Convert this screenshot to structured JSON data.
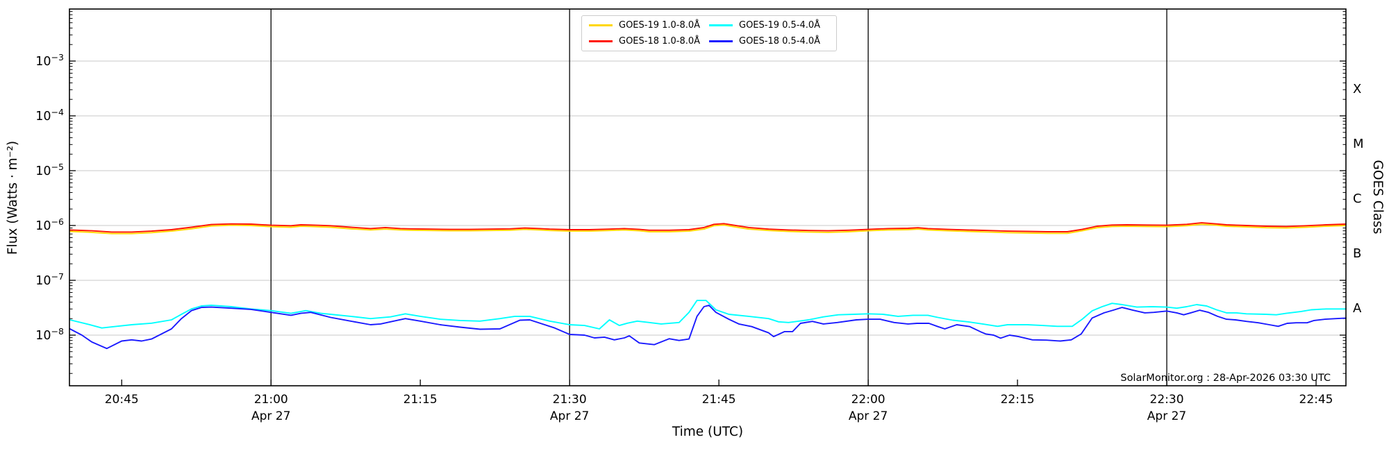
{
  "figure": {
    "watermark": "SolarMonitor.org : 28-Apr-2026 03:30 UTC",
    "xlabel": "Time (UTC)",
    "ylabel": "Flux (Watts · m⁻²)",
    "ylabel_right": "GOES Class",
    "background": "#ffffff"
  },
  "chart_data": {
    "type": "line",
    "title": "",
    "x_unit": "minutes after 20:00 UTC on Apr 27",
    "y_unit": "Watts m^-2, log10 scale",
    "xlim": [
      39.75,
      168
    ],
    "ylim_log10": [
      -8.924,
      -2.051
    ],
    "grid": "horizontal-decades",
    "grid_decades": [
      -3,
      -4,
      -5,
      -6,
      -7,
      -8
    ],
    "legend_position": "upper center",
    "x_ticks": [
      {
        "t": 45,
        "label": "20:45"
      },
      {
        "t": 60,
        "label": "21:00",
        "date": "Apr 27",
        "vline": true
      },
      {
        "t": 75,
        "label": "21:15"
      },
      {
        "t": 90,
        "label": "21:30",
        "date": "Apr 27",
        "vline": true
      },
      {
        "t": 105,
        "label": "21:45"
      },
      {
        "t": 120,
        "label": "22:00",
        "date": "Apr 27",
        "vline": true
      },
      {
        "t": 135,
        "label": "22:15"
      },
      {
        "t": 150,
        "label": "22:30",
        "date": "Apr 27",
        "vline": true
      },
      {
        "t": 165,
        "label": "22:45"
      }
    ],
    "goes_classes": [
      {
        "label": "X",
        "log10_flux": -3.5
      },
      {
        "label": "M",
        "log10_flux": -4.5
      },
      {
        "label": "C",
        "log10_flux": -5.5
      },
      {
        "label": "B",
        "log10_flux": -6.5
      },
      {
        "label": "A",
        "log10_flux": -7.5
      }
    ],
    "series": [
      {
        "name": "GOES-19 1.0-8.0Å",
        "color": "#ffd700",
        "x": [
          39.8,
          42,
          44,
          46,
          48,
          50,
          52,
          54,
          56,
          58,
          60,
          62,
          63,
          64,
          66,
          68,
          70,
          71.5,
          73,
          74,
          76,
          78,
          80,
          82,
          84,
          85.5,
          87,
          88,
          90,
          92,
          94,
          95.5,
          97,
          98,
          100,
          102,
          103.5,
          104.5,
          105.5,
          107,
          108,
          110,
          112,
          114,
          116,
          118,
          120,
          122,
          124,
          125,
          126,
          128,
          130,
          132,
          134,
          136,
          138,
          140,
          141.5,
          143,
          144.5,
          146,
          148,
          150,
          152,
          153.5,
          155,
          156,
          158,
          160,
          162,
          164,
          166,
          168
        ],
        "y": [
          7.8e-07,
          7.5e-07,
          7.1e-07,
          7.1e-07,
          7.4e-07,
          7.9e-07,
          8.7e-07,
          9.8e-07,
          1.01e-06,
          1e-06,
          9.5e-07,
          9.3e-07,
          9.7e-07,
          9.6e-07,
          9.3e-07,
          8.7e-07,
          8.3e-07,
          8.6e-07,
          8.3e-07,
          8.2e-07,
          8.1e-07,
          8e-07,
          8e-07,
          8.1e-07,
          8.2e-07,
          8.5e-07,
          8.3e-07,
          8.1e-07,
          7.9e-07,
          7.9e-07,
          8.1e-07,
          8.3e-07,
          8e-07,
          7.7e-07,
          7.7e-07,
          7.9e-07,
          8.6e-07,
          9.9e-07,
          1.02e-06,
          9.2e-07,
          8.6e-07,
          8.1e-07,
          7.8e-07,
          7.6e-07,
          7.5e-07,
          7.7e-07,
          8e-07,
          8.3e-07,
          8.4e-07,
          8.6e-07,
          8.3e-07,
          8e-07,
          7.8e-07,
          7.6e-07,
          7.4e-07,
          7.3e-07,
          7.2e-07,
          7.2e-07,
          8e-07,
          9.1e-07,
          9.6e-07,
          9.7e-07,
          9.6e-07,
          9.5e-07,
          9.9e-07,
          1.05e-06,
          1.01e-06,
          9.7e-07,
          9.4e-07,
          9.1e-07,
          9e-07,
          9.3e-07,
          9.7e-07,
          1e-06
        ]
      },
      {
        "name": "GOES-18 1.0-8.0Å",
        "color": "#ff1200",
        "x": [
          39.8,
          42,
          44,
          46,
          48,
          50,
          52,
          54,
          56,
          58,
          60,
          62,
          63,
          64,
          66,
          68,
          70,
          71.5,
          73,
          74,
          76,
          78,
          80,
          82,
          84,
          85.5,
          87,
          88,
          90,
          92,
          94,
          95.5,
          97,
          98,
          100,
          102,
          103.5,
          104.5,
          105.5,
          107,
          108,
          110,
          112,
          114,
          116,
          118,
          120,
          122,
          124,
          125,
          126,
          128,
          130,
          132,
          134,
          136,
          138,
          140,
          141.5,
          143,
          144.5,
          146,
          148,
          150,
          152,
          153.5,
          155,
          156,
          158,
          160,
          162,
          164,
          166,
          168
        ],
        "y": [
          8.3e-07,
          8e-07,
          7.6e-07,
          7.6e-07,
          7.9e-07,
          8.4e-07,
          9.3e-07,
          1.04e-06,
          1.07e-06,
          1.06e-06,
          1.01e-06,
          9.9e-07,
          1.03e-06,
          1.02e-06,
          9.9e-07,
          9.3e-07,
          8.8e-07,
          9.2e-07,
          8.8e-07,
          8.7e-07,
          8.6e-07,
          8.5e-07,
          8.5e-07,
          8.6e-07,
          8.7e-07,
          9e-07,
          8.8e-07,
          8.6e-07,
          8.4e-07,
          8.4e-07,
          8.6e-07,
          8.8e-07,
          8.5e-07,
          8.2e-07,
          8.2e-07,
          8.4e-07,
          9.2e-07,
          1.05e-06,
          1.08e-06,
          9.8e-07,
          9.2e-07,
          8.6e-07,
          8.3e-07,
          8.1e-07,
          8e-07,
          8.2e-07,
          8.5e-07,
          8.8e-07,
          8.9e-07,
          9.1e-07,
          8.8e-07,
          8.5e-07,
          8.3e-07,
          8.1e-07,
          7.9e-07,
          7.8e-07,
          7.7e-07,
          7.7e-07,
          8.5e-07,
          9.7e-07,
          1.02e-06,
          1.03e-06,
          1.02e-06,
          1.01e-06,
          1.05e-06,
          1.12e-06,
          1.07e-06,
          1.03e-06,
          1e-06,
          9.7e-07,
          9.6e-07,
          9.9e-07,
          1.03e-06,
          1.06e-06
        ]
      },
      {
        "name": "GOES-19 0.5-4.0Å",
        "color": "#00ffff",
        "x": [
          39.8,
          41.5,
          43,
          44.5,
          46,
          48,
          50,
          51,
          52,
          53,
          54,
          56,
          58,
          60,
          62,
          63.5,
          65,
          66,
          68,
          70,
          72,
          73.5,
          75,
          77,
          79,
          81,
          83,
          84.5,
          86,
          88,
          90,
          91.5,
          93,
          94,
          95,
          95.8,
          96.8,
          98,
          99.2,
          101,
          102,
          102.8,
          103.7,
          104.7,
          106,
          108,
          110,
          111,
          112,
          114,
          115.5,
          117,
          118.5,
          120,
          121.5,
          123,
          124.5,
          126,
          127,
          128.5,
          130,
          131.5,
          133,
          134,
          136,
          137.5,
          139,
          140.5,
          141.5,
          142.5,
          143.5,
          144.5,
          145.5,
          147,
          148.5,
          150,
          151,
          152,
          153,
          154,
          155,
          156,
          157,
          158,
          160,
          161,
          162,
          163.5,
          164.5,
          166,
          168
        ],
        "y": [
          1.9e-08,
          1.6e-08,
          1.35e-08,
          1.45e-08,
          1.55e-08,
          1.65e-08,
          1.9e-08,
          2.4e-08,
          3e-08,
          3.4e-08,
          3.5e-08,
          3.3e-08,
          3e-08,
          2.8e-08,
          2.5e-08,
          2.8e-08,
          2.5e-08,
          2.4e-08,
          2.2e-08,
          2e-08,
          2.15e-08,
          2.45e-08,
          2.2e-08,
          1.95e-08,
          1.85e-08,
          1.8e-08,
          2e-08,
          2.2e-08,
          2.2e-08,
          1.8e-08,
          1.55e-08,
          1.5e-08,
          1.3e-08,
          1.9e-08,
          1.5e-08,
          1.65e-08,
          1.8e-08,
          1.7e-08,
          1.6e-08,
          1.7e-08,
          2.6e-08,
          4.3e-08,
          4.3e-08,
          2.9e-08,
          2.4e-08,
          2.2e-08,
          2e-08,
          1.75e-08,
          1.7e-08,
          1.9e-08,
          2.15e-08,
          2.35e-08,
          2.4e-08,
          2.45e-08,
          2.4e-08,
          2.2e-08,
          2.3e-08,
          2.3e-08,
          2.1e-08,
          1.87e-08,
          1.75e-08,
          1.6e-08,
          1.45e-08,
          1.55e-08,
          1.55e-08,
          1.5e-08,
          1.45e-08,
          1.45e-08,
          1.95e-08,
          2.77e-08,
          3.3e-08,
          3.8e-08,
          3.6e-08,
          3.25e-08,
          3.3e-08,
          3.25e-08,
          3.1e-08,
          3.3e-08,
          3.6e-08,
          3.4e-08,
          2.9e-08,
          2.55e-08,
          2.55e-08,
          2.45e-08,
          2.4e-08,
          2.35e-08,
          2.5e-08,
          2.7e-08,
          2.9e-08,
          3e-08,
          3e-08
        ]
      },
      {
        "name": "GOES-18 0.5-4.0Å",
        "color": "#1a1aff",
        "x": [
          39.8,
          41,
          42,
          43.5,
          45,
          46,
          47,
          48,
          50,
          51,
          52,
          53,
          54,
          56,
          58,
          60,
          62,
          63,
          64,
          66,
          68,
          70,
          71,
          72,
          73.5,
          75,
          77,
          79,
          81,
          83,
          85,
          86,
          88.5,
          90,
          91.5,
          92.5,
          93.5,
          94.5,
          95.5,
          96,
          97,
          98.5,
          100,
          101,
          102,
          102.8,
          103.5,
          104,
          104.7,
          106,
          107,
          108.3,
          110,
          110.5,
          111.6,
          112.4,
          113.2,
          114.4,
          115.5,
          116.9,
          118.8,
          120,
          121.2,
          122.6,
          124,
          124.9,
          126.1,
          127,
          127.7,
          128.9,
          130.2,
          131.3,
          131.8,
          132.6,
          133.3,
          134.2,
          135.1,
          136.5,
          137.9,
          139.3,
          140.4,
          141.4,
          142.5,
          143.7,
          144.6,
          145.5,
          146.6,
          147.8,
          148.7,
          150,
          151,
          151.7,
          152.4,
          153.3,
          154.2,
          155.1,
          156,
          156.9,
          158,
          159.2,
          160.3,
          161.2,
          162.1,
          163,
          164.1,
          164.8,
          165.9,
          167,
          168
        ],
        "y": [
          1.3e-08,
          1e-08,
          7.5e-09,
          5.7e-09,
          7.8e-09,
          8.2e-09,
          7.8e-09,
          8.5e-09,
          1.3e-08,
          2e-08,
          2.8e-08,
          3.2e-08,
          3.25e-08,
          3.1e-08,
          2.95e-08,
          2.6e-08,
          2.3e-08,
          2.5e-08,
          2.6e-08,
          2.1e-08,
          1.8e-08,
          1.55e-08,
          1.6e-08,
          1.75e-08,
          2e-08,
          1.8e-08,
          1.55e-08,
          1.4e-08,
          1.28e-08,
          1.3e-08,
          1.87e-08,
          1.9e-08,
          1.35e-08,
          1.03e-08,
          1e-08,
          8.9e-09,
          9.2e-09,
          8.2e-09,
          8.9e-09,
          9.7e-09,
          7.2e-09,
          6.7e-09,
          8.6e-09,
          8e-09,
          8.5e-09,
          2.2e-08,
          3.3e-08,
          3.5e-08,
          2.6e-08,
          1.95e-08,
          1.6e-08,
          1.43e-08,
          1.1e-08,
          9.4e-09,
          1.16e-08,
          1.16e-08,
          1.64e-08,
          1.78e-08,
          1.6e-08,
          1.7e-08,
          1.9e-08,
          1.95e-08,
          1.95e-08,
          1.7e-08,
          1.6e-08,
          1.64e-08,
          1.64e-08,
          1.43e-08,
          1.3e-08,
          1.55e-08,
          1.43e-08,
          1.15e-08,
          1.05e-08,
          1e-08,
          8.8e-09,
          1e-08,
          9.4e-09,
          8.2e-09,
          8.1e-09,
          7.8e-09,
          8.2e-09,
          1.05e-08,
          2.05e-08,
          2.55e-08,
          2.85e-08,
          3.2e-08,
          2.85e-08,
          2.55e-08,
          2.6e-08,
          2.75e-08,
          2.55e-08,
          2.35e-08,
          2.55e-08,
          2.85e-08,
          2.6e-08,
          2.2e-08,
          1.95e-08,
          1.9e-08,
          1.78e-08,
          1.68e-08,
          1.55e-08,
          1.45e-08,
          1.64e-08,
          1.68e-08,
          1.68e-08,
          1.85e-08,
          1.95e-08,
          2e-08,
          2.05e-08
        ]
      }
    ]
  }
}
